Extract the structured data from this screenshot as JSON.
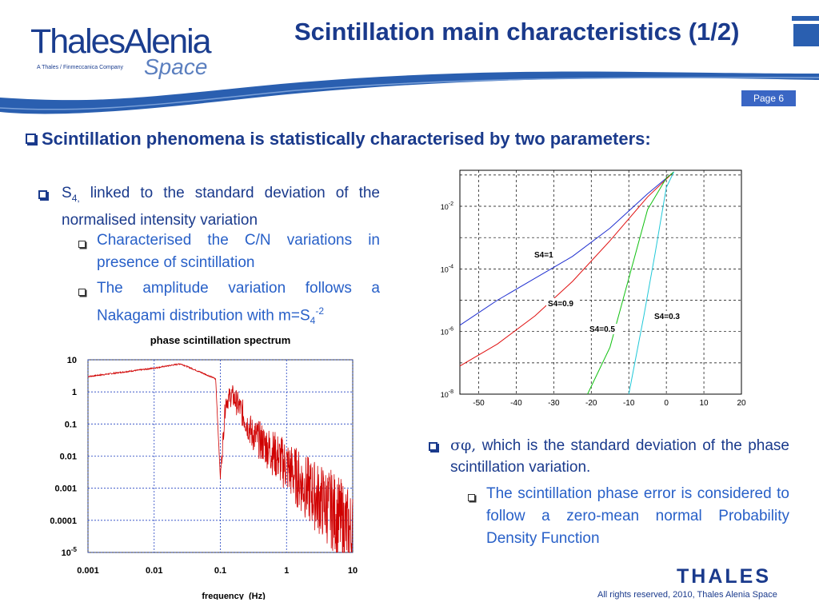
{
  "header": {
    "logo_main": "ThalesAlenia",
    "logo_tagline": "A Thales / Finmeccanica Company",
    "logo_space": "Space",
    "title": "Scintillation main characteristics (1/2)",
    "page_label": "Page 6"
  },
  "main_heading": "Scintillation phenomena is statistically characterised by two parameters:",
  "left_bullets": {
    "s4_symbol": "S",
    "s4_sub": "4,",
    "s4_text": "linked to the standard deviation of the normalised intensity variation",
    "sub1": "Characterised the C/N variations in presence of scintillation",
    "sub2_prefix": "The amplitude variation follows a Nakagami distribution with m=S",
    "sub2_sub": "4",
    "sub2_sup": "-2"
  },
  "right_bullets": {
    "sigma_phi": "σφ,",
    "text": "which is the standard deviation of the phase scintillation variation.",
    "sub1": "The scintillation phase error is considered to follow a zero-mean normal Probability Density Function"
  },
  "footer": {
    "brand": "THALES",
    "copyright": "All rights reserved, 2010, Thales Alenia Space"
  },
  "chart_data": [
    {
      "type": "line",
      "title": "phase scintillation spectrum",
      "xlabel": "frequency_(Hz)",
      "ylabel": "",
      "x_scale": "log",
      "y_scale": "log",
      "xlim": [
        0.001,
        10
      ],
      "ylim": [
        1e-05,
        10
      ],
      "x_ticks": [
        "0.001",
        "0.01",
        "0.1",
        "1",
        "10"
      ],
      "y_ticks": [
        "10",
        "1",
        "0.1",
        "0.01",
        "0.001",
        "0.0001",
        "10^-5"
      ],
      "grid": true,
      "color": "#d00000",
      "series": [
        {
          "x": [
            0.001,
            0.003,
            0.01,
            0.025,
            0.04,
            0.06,
            0.08,
            0.085,
            0.09,
            0.1,
            0.12,
            0.15,
            0.2,
            0.3,
            0.5,
            1,
            2,
            5,
            10
          ],
          "y": [
            3,
            4,
            5.5,
            7.5,
            5,
            3.5,
            2.7,
            2.5,
            0.2,
            0.002,
            0.5,
            0.8,
            0.3,
            0.05,
            0.02,
            0.005,
            0.001,
            0.0002,
            3e-05
          ]
        }
      ]
    },
    {
      "type": "line",
      "title": "",
      "xlabel": "",
      "ylabel": "",
      "y_scale": "log",
      "xlim": [
        -55,
        20
      ],
      "x_ticks": [
        "-50",
        "-40",
        "-30",
        "-20",
        "-10",
        "0",
        "10",
        "20"
      ],
      "y_ticks": [
        "10^-2",
        "10^-4",
        "10^-6",
        "10^-8"
      ],
      "grid": true,
      "series": [
        {
          "name": "",
          "color": "#2030d0",
          "x": [
            -55,
            -45,
            -35,
            -25,
            -15,
            -5,
            2
          ],
          "y": [
            -5.8,
            -5.0,
            -4.3,
            -3.6,
            -2.7,
            -1.6,
            -0.9
          ]
        },
        {
          "name": "",
          "color": "#e01010",
          "x": [
            -55,
            -45,
            -35,
            -25,
            -15,
            -5,
            2
          ],
          "y": [
            -7.1,
            -6.4,
            -5.5,
            -4.4,
            -3.1,
            -1.7,
            -0.9
          ]
        },
        {
          "name": "",
          "color": "#10c010",
          "x": [
            -21,
            -15,
            -10,
            -5,
            0,
            2
          ],
          "y": [
            -8.0,
            -6.5,
            -4.3,
            -2.1,
            -1.1,
            -0.9
          ]
        },
        {
          "name": "",
          "color": "#20c8d8",
          "x": [
            -10,
            -6,
            -3,
            0,
            2
          ],
          "y": [
            -8.0,
            -5.5,
            -3.5,
            -1.4,
            -0.9
          ]
        }
      ],
      "annotations": [
        "S4=1",
        "S4=0.9",
        "S4=0.5",
        "S4=0.3"
      ]
    }
  ]
}
